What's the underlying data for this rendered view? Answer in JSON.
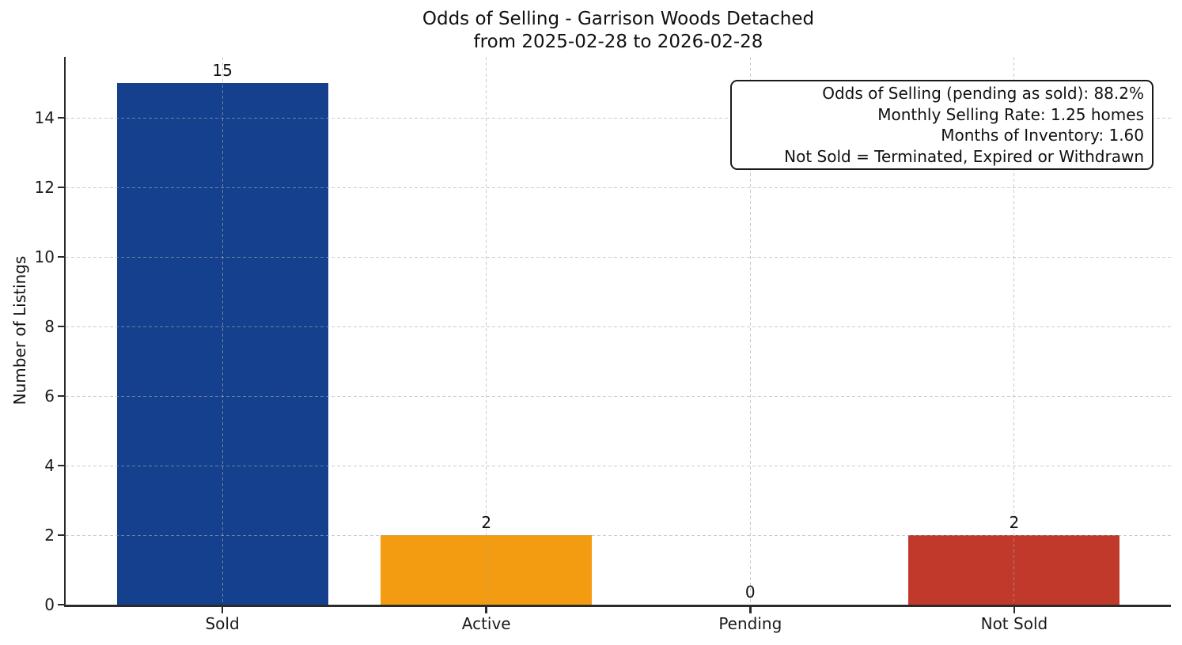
{
  "title": {
    "line1": "Odds of Selling - Garrison Woods Detached",
    "line2": "from 2025-02-28 to 2026-02-28"
  },
  "annotation": {
    "lines": [
      "Odds of Selling (pending as sold): 88.2%",
      "Monthly Selling Rate: 1.25 homes",
      "Months of Inventory: 1.60",
      "Not Sold = Terminated, Expired or Withdrawn"
    ]
  },
  "chart_data": {
    "type": "bar",
    "title": "Odds of Selling - Garrison Woods Detached\nfrom 2025-02-28 to 2026-02-28",
    "categories": [
      "Sold",
      "Active",
      "Pending",
      "Not Sold"
    ],
    "values": [
      15,
      2,
      0,
      2
    ],
    "bar_labels": [
      "15",
      "2",
      "0",
      "2"
    ],
    "bar_colors": [
      "#14408e",
      "#f39c12",
      "#808080",
      "#c0392b"
    ],
    "xlabel": "",
    "ylabel": "Number of Listings",
    "ylim": [
      0,
      15.75
    ],
    "yticks": [
      0,
      2,
      4,
      6,
      8,
      10,
      12,
      14
    ],
    "grid": "dashed light gray, horizontal at y ticks and vertical at category centers, drawn over bars",
    "legend_position": "none",
    "spine_color": "#2b2b2b",
    "background_color": "#ffffff"
  }
}
